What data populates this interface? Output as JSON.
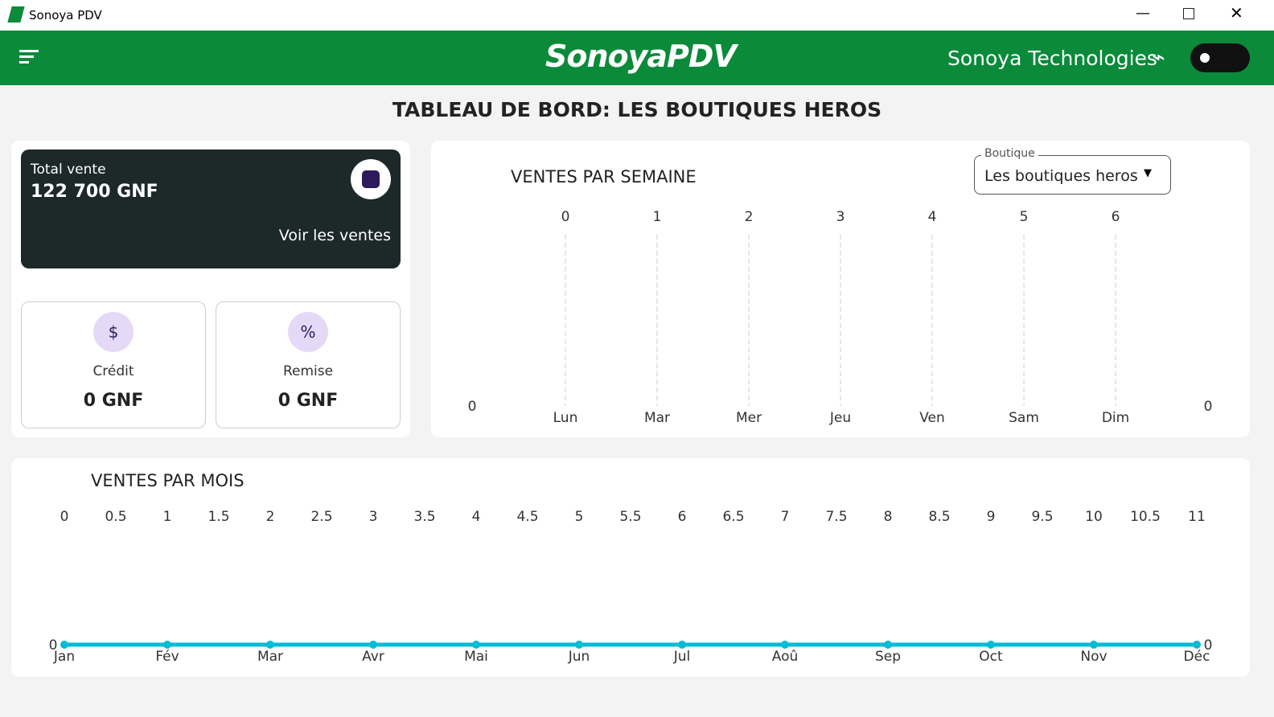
{
  "window": {
    "title": "Sonoya PDV"
  },
  "header": {
    "logo": "SonoyaPDV",
    "company": "Sonoya Technologies"
  },
  "page_title": "TABLEAU DE BORD: LES BOUTIQUES HEROS",
  "total_card": {
    "label": "Total vente",
    "amount": "122 700 GNF",
    "link": "Voir les ventes"
  },
  "credit_card": {
    "label": "Crédit",
    "amount": "0 GNF"
  },
  "remise_card": {
    "label": "Remise",
    "amount": "0 GNF"
  },
  "weekly_chart": {
    "type": "bar",
    "title": "VENTES PAR SEMAINE",
    "filter_label": "Boutique",
    "filter_value": "Les boutiques heros",
    "categories": [
      "Lun",
      "Mar",
      "Mer",
      "Jeu",
      "Ven",
      "Sam",
      "Dim"
    ],
    "values": [
      0,
      0,
      0,
      0,
      0,
      0,
      0
    ],
    "xticks": [
      0,
      1,
      2,
      3,
      4,
      5,
      6
    ],
    "yticks": [
      0
    ],
    "y2ticks": [
      0
    ],
    "grid": true
  },
  "monthly_chart": {
    "type": "line",
    "title": "VENTES PAR MOIS",
    "color": "#00bcd4",
    "categories": [
      "Jan",
      "Fév",
      "Mar",
      "Avr",
      "Mai",
      "Jun",
      "Jul",
      "Aoû",
      "Sep",
      "Oct",
      "Nov",
      "Déc"
    ],
    "values": [
      0,
      0,
      0,
      0,
      0,
      0,
      0,
      0,
      0,
      0,
      0,
      0
    ],
    "xticks": [
      0,
      0.5,
      1,
      1.5,
      2,
      2.5,
      3,
      3.5,
      4,
      4.5,
      5,
      5.5,
      6,
      6.5,
      7,
      7.5,
      8,
      8.5,
      9,
      9.5,
      10,
      10.5,
      11
    ],
    "yticks": [
      0
    ],
    "y2ticks": [
      0
    ]
  }
}
